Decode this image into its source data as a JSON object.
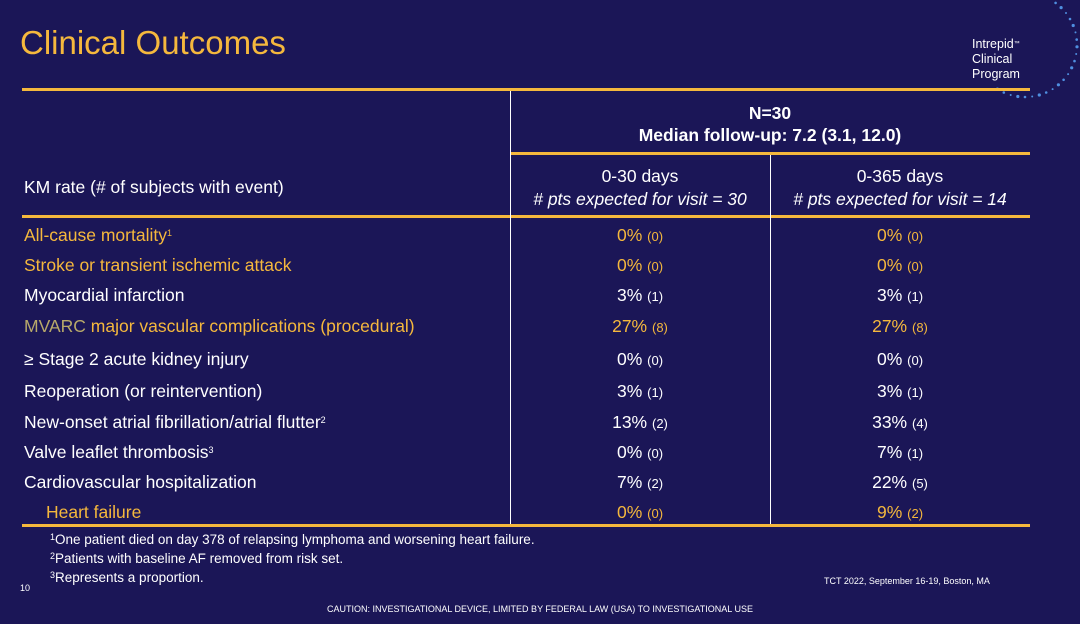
{
  "title": "Clinical Outcomes",
  "logo": {
    "line1": "Intrepid",
    "tm": "™",
    "line2": "Clinical",
    "line3": "Program"
  },
  "header": {
    "n": "N=30",
    "followup": "Median follow-up: 7.2 (3.1, 12.0)",
    "row_label": "KM rate (# of subjects with event)",
    "col1_title": "0-30 days",
    "col1_sub": "# pts expected for visit = 30",
    "col2_title": "0-365 days",
    "col2_sub": "# pts expected for visit = 14"
  },
  "rows": [
    {
      "label": "All-cause mortality",
      "sup": "1",
      "v1": "0%",
      "n1": "(0)",
      "v2": "0%",
      "n2": "(0)"
    },
    {
      "label": "Stroke or transient ischemic attack",
      "sup": "",
      "v1": "0%",
      "n1": "(0)",
      "v2": "0%",
      "n2": "(0)"
    },
    {
      "label": "Myocardial infarction",
      "sup": "",
      "v1": "3%",
      "n1": "(1)",
      "v2": "3%",
      "n2": "(1)"
    },
    {
      "label_prefix": "MVARC",
      "label": " major vascular complications (procedural)",
      "sup": "",
      "v1": "27%",
      "n1": "(8)",
      "v2": "27%",
      "n2": "(8)"
    },
    {
      "label": "≥ Stage 2 acute kidney injury",
      "sup": "",
      "v1": "0%",
      "n1": "(0)",
      "v2": "0%",
      "n2": "(0)"
    },
    {
      "label": "Reoperation (or reintervention)",
      "sup": "",
      "v1": "3%",
      "n1": "(1)",
      "v2": "3%",
      "n2": "(1)"
    },
    {
      "label": "New-onset atrial fibrillation/atrial flutter",
      "sup": "2",
      "v1": "13%",
      "n1": "(2)",
      "v2": "33%",
      "n2": "(4)"
    },
    {
      "label": "Valve leaflet thrombosis",
      "sup": "3",
      "v1": "0%",
      "n1": "(0)",
      "v2": "7%",
      "n2": "(1)"
    },
    {
      "label": "Cardiovascular hospitalization",
      "sup": "",
      "v1": "7%",
      "n1": "(2)",
      "v2": "22%",
      "n2": "(5)"
    },
    {
      "label": "Heart failure",
      "sup": "",
      "v1": "0%",
      "n1": "(0)",
      "v2": "9%",
      "n2": "(2)"
    }
  ],
  "footnotes": [
    {
      "sup": "1",
      "text": "One patient died on day 378 of relapsing lymphoma and worsening heart failure."
    },
    {
      "sup": "2",
      "text": "Patients with baseline AF removed from risk set."
    },
    {
      "sup": "3",
      "text": "Represents a proportion."
    }
  ],
  "page_number": "10",
  "conference": "TCT 2022, September 16-19, Boston, MA",
  "caution": "CAUTION: INVESTIGATIONAL DEVICE, LIMITED BY FEDERAL LAW (USA) TO INVESTIGATIONAL USE",
  "colors": {
    "background": "#1b1657",
    "accent": "#f5b83d",
    "olive": "#b8a96a"
  }
}
